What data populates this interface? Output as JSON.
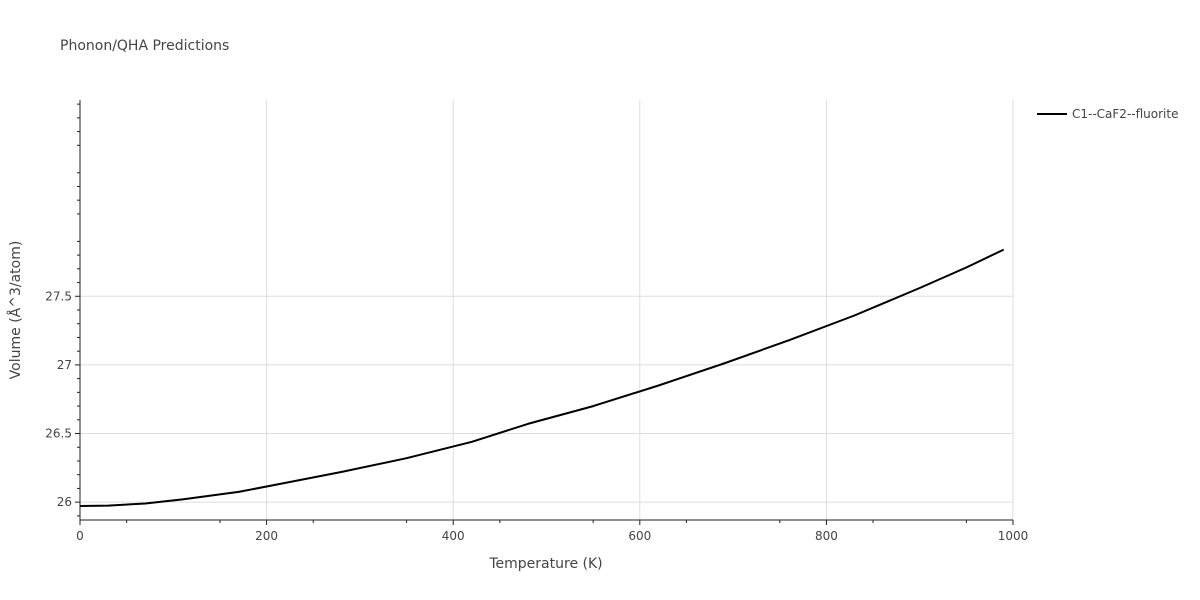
{
  "chart_data": {
    "type": "line",
    "title": "Phonon/QHA Predictions",
    "xlabel": "Temperature (K)",
    "ylabel": "Volume (Å^3/atom)",
    "xlim": [
      0,
      1000
    ],
    "ylim": [
      25.87,
      28.93
    ],
    "x_ticks": [
      0,
      200,
      400,
      600,
      800,
      1000
    ],
    "x_tick_labels": [
      "0",
      "200",
      "400",
      "600",
      "800",
      "1000"
    ],
    "y_ticks": [
      26,
      26.5,
      27,
      27.5
    ],
    "y_tick_labels": [
      "26",
      "26.5",
      "27",
      "27.5"
    ],
    "grid": true,
    "legend_position": "top-right",
    "series": [
      {
        "name": "C1--CaF2--fluorite",
        "color": "#000000",
        "x": [
          0,
          30,
          70,
          110,
          170,
          220,
          280,
          350,
          420,
          480,
          550,
          620,
          690,
          760,
          830,
          900,
          950,
          990
        ],
        "y": [
          25.972,
          25.975,
          25.99,
          26.02,
          26.075,
          26.14,
          26.22,
          26.32,
          26.44,
          26.57,
          26.7,
          26.85,
          27.01,
          27.18,
          27.36,
          27.56,
          27.71,
          27.84
        ]
      }
    ]
  }
}
